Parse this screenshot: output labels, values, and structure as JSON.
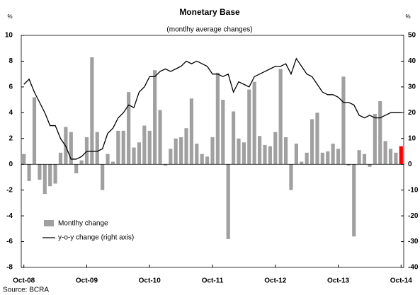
{
  "chart_data": {
    "type": "bar_line",
    "title": "Monetary Base",
    "subtitle": "(montlhy average changes)",
    "y_unit": "%",
    "y2_unit": "%",
    "source": "Source: BCRA",
    "categories": [
      "Oct-08",
      null,
      null,
      null,
      null,
      null,
      null,
      null,
      null,
      null,
      null,
      null,
      "Oct-09",
      null,
      null,
      null,
      null,
      null,
      null,
      null,
      null,
      null,
      null,
      null,
      "Oct-10",
      null,
      null,
      null,
      null,
      null,
      null,
      null,
      null,
      null,
      null,
      null,
      "Oct-11",
      null,
      null,
      null,
      null,
      null,
      null,
      null,
      null,
      null,
      null,
      null,
      "Oct-12",
      null,
      null,
      null,
      null,
      null,
      null,
      null,
      null,
      null,
      null,
      null,
      "Oct-13",
      null,
      null,
      null,
      null,
      null,
      null,
      null,
      null,
      null,
      null,
      null,
      "Oct-14"
    ],
    "series": [
      {
        "name": "Montlhy change",
        "kind": "bar",
        "color": "#a0a0a0",
        "colors": [
          "#a0a0a0",
          "#a0a0a0",
          "#a0a0a0",
          "#a0a0a0",
          "#a0a0a0",
          "#a0a0a0",
          "#a0a0a0",
          "#a0a0a0",
          "#a0a0a0",
          "#a0a0a0",
          "#a0a0a0",
          "#a0a0a0",
          "#a0a0a0",
          "#a0a0a0",
          "#a0a0a0",
          "#a0a0a0",
          "#a0a0a0",
          "#a0a0a0",
          "#a0a0a0",
          "#a0a0a0",
          "#a0a0a0",
          "#a0a0a0",
          "#a0a0a0",
          "#a0a0a0",
          "#a0a0a0",
          "#a0a0a0",
          "#a0a0a0",
          "#a0a0a0",
          "#a0a0a0",
          "#a0a0a0",
          "#a0a0a0",
          "#a0a0a0",
          "#a0a0a0",
          "#a0a0a0",
          "#a0a0a0",
          "#a0a0a0",
          "#a0a0a0",
          "#a0a0a0",
          "#a0a0a0",
          "#a0a0a0",
          "#a0a0a0",
          "#a0a0a0",
          "#a0a0a0",
          "#a0a0a0",
          "#a0a0a0",
          "#a0a0a0",
          "#a0a0a0",
          "#a0a0a0",
          "#a0a0a0",
          "#a0a0a0",
          "#a0a0a0",
          "#a0a0a0",
          "#a0a0a0",
          "#a0a0a0",
          "#a0a0a0",
          "#a0a0a0",
          "#a0a0a0",
          "#a0a0a0",
          "#a0a0a0",
          "#a0a0a0",
          "#a0a0a0",
          "#a0a0a0",
          "#a0a0a0",
          "#a0a0a0",
          "#a0a0a0",
          "#a0a0a0",
          "#a0a0a0",
          "#a0a0a0",
          "#a0a0a0",
          "#a0a0a0",
          "#a0a0a0",
          "#a0a0a0",
          "#ff0000"
        ],
        "values": [
          0.8,
          -1.3,
          5.2,
          -1.2,
          -2.3,
          -1.7,
          -1.5,
          0.9,
          2.9,
          2.5,
          -0.7,
          0.3,
          2.1,
          8.3,
          2.5,
          -2.0,
          0.8,
          0.2,
          2.6,
          2.6,
          5.6,
          1.3,
          1.7,
          3.0,
          2.6,
          7.3,
          4.2,
          -0.1,
          1.2,
          2.0,
          2.1,
          2.8,
          5.1,
          1.6,
          0.8,
          0.6,
          2.1,
          7.1,
          5.0,
          -5.8,
          4.1,
          2.0,
          1.7,
          5.8,
          6.4,
          2.2,
          1.5,
          1.4,
          2.5,
          7.4,
          2.1,
          -2.0,
          1.6,
          0.2,
          0.9,
          3.5,
          4.0,
          0.9,
          1.0,
          1.6,
          1.2,
          6.8,
          -0.1,
          -5.6,
          1.1,
          0.8,
          -0.2,
          3.9,
          4.9,
          1.8,
          1.2,
          0.9,
          1.4
        ]
      },
      {
        "name": "y-o-y change (right axis)",
        "kind": "line",
        "axis": "y2",
        "color": "#000000",
        "values": [
          31,
          33,
          28,
          24,
          20,
          15,
          15,
          10,
          7,
          2,
          2,
          3,
          5,
          5,
          5,
          6,
          12,
          14,
          18,
          20,
          23,
          22,
          28,
          30,
          34,
          34,
          36,
          37,
          36,
          37,
          38,
          40,
          39,
          40,
          39,
          38,
          35,
          35,
          34,
          35,
          28,
          32,
          31,
          30,
          34,
          35,
          36,
          37,
          38,
          38,
          39,
          35,
          41,
          38,
          35,
          34,
          31,
          28,
          27,
          27,
          26,
          24,
          24,
          23,
          19,
          18,
          19,
          18,
          18,
          19,
          20,
          20,
          20
        ]
      }
    ],
    "ylim": [
      -8,
      10
    ],
    "yticks": [
      -8,
      -6,
      -4,
      -2,
      0,
      2,
      4,
      6,
      8,
      10
    ],
    "y2lim": [
      -40,
      50
    ],
    "y2ticks": [
      -40,
      -30,
      -20,
      -10,
      0,
      10,
      20,
      30,
      40,
      50
    ]
  }
}
